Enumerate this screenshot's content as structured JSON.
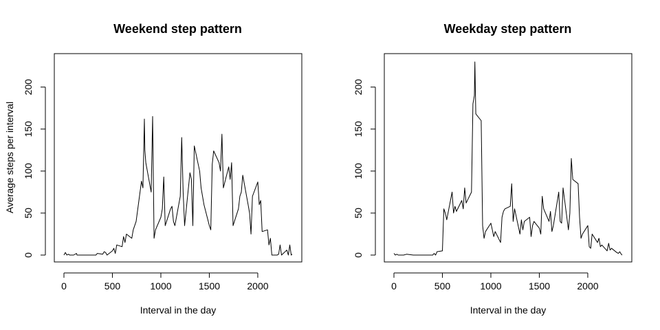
{
  "chart_data": [
    {
      "type": "line",
      "title": "Weekend step pattern",
      "xlabel": "Interval in the day",
      "ylabel": "Average steps per interval",
      "xlim": [
        0,
        2355
      ],
      "ylim": [
        0,
        230
      ],
      "xticks": [
        0,
        500,
        1000,
        1500,
        2000
      ],
      "yticks": [
        0,
        50,
        100,
        150,
        200
      ],
      "grid": false,
      "series": [
        {
          "x": [
            0,
            15,
            30,
            45,
            60,
            100,
            130,
            135,
            200,
            300,
            330,
            345,
            400,
            415,
            430,
            445,
            500,
            515,
            530,
            545,
            600,
            615,
            630,
            645,
            700,
            715,
            730,
            745,
            800,
            815,
            830,
            835,
            845,
            900,
            915,
            930,
            945,
            1000,
            1015,
            1030,
            1045,
            1100,
            1115,
            1130,
            1145,
            1200,
            1215,
            1230,
            1245,
            1300,
            1315,
            1330,
            1345,
            1400,
            1415,
            1430,
            1445,
            1500,
            1515,
            1530,
            1545,
            1600,
            1615,
            1630,
            1645,
            1700,
            1715,
            1730,
            1745,
            1800,
            1815,
            1830,
            1845,
            1900,
            1915,
            1930,
            1945,
            2000,
            2015,
            2030,
            2045,
            2100,
            2115,
            2130,
            2145,
            2200,
            2215,
            2230,
            2245,
            2300,
            2315,
            2330,
            2345,
            2355
          ],
          "y": [
            0,
            3,
            0,
            1,
            0,
            0,
            2,
            0,
            0,
            0,
            0,
            2,
            1,
            4,
            3,
            0,
            5,
            8,
            2,
            12,
            10,
            22,
            15,
            25,
            20,
            30,
            35,
            40,
            88,
            80,
            162,
            125,
            110,
            75,
            165,
            20,
            30,
            45,
            55,
            93,
            35,
            55,
            58,
            40,
            35,
            70,
            140,
            75,
            35,
            98,
            90,
            35,
            130,
            100,
            80,
            70,
            60,
            35,
            30,
            108,
            124,
            110,
            100,
            144,
            80,
            105,
            90,
            110,
            35,
            55,
            70,
            75,
            95,
            60,
            50,
            25,
            70,
            87,
            60,
            65,
            28,
            30,
            12,
            20,
            0,
            0,
            1,
            12,
            0,
            6,
            0,
            12,
            0,
            1
          ]
        }
      ]
    },
    {
      "type": "line",
      "title": "Weekday step pattern",
      "xlabel": "Interval in the day",
      "ylabel": "",
      "xlim": [
        0,
        2355
      ],
      "ylim": [
        0,
        230
      ],
      "xticks": [
        0,
        500,
        1000,
        1500,
        2000
      ],
      "yticks": [
        0,
        50,
        100,
        150,
        200
      ],
      "grid": false,
      "series": [
        {
          "x": [
            0,
            15,
            30,
            45,
            100,
            130,
            200,
            300,
            400,
            415,
            430,
            445,
            500,
            515,
            530,
            545,
            600,
            615,
            630,
            645,
            700,
            715,
            730,
            745,
            800,
            815,
            830,
            835,
            845,
            900,
            915,
            930,
            945,
            1000,
            1015,
            1030,
            1045,
            1100,
            1115,
            1130,
            1145,
            1200,
            1215,
            1230,
            1245,
            1300,
            1315,
            1330,
            1345,
            1400,
            1415,
            1430,
            1445,
            1500,
            1515,
            1530,
            1545,
            1600,
            1615,
            1630,
            1645,
            1700,
            1715,
            1730,
            1745,
            1800,
            1815,
            1830,
            1845,
            1900,
            1915,
            1930,
            1945,
            2000,
            2015,
            2030,
            2045,
            2100,
            2115,
            2130,
            2145,
            2200,
            2215,
            2230,
            2245,
            2300,
            2315,
            2330,
            2345,
            2355
          ],
          "y": [
            2,
            0,
            1,
            0,
            0,
            1,
            0,
            0,
            0,
            2,
            0,
            4,
            5,
            55,
            50,
            42,
            75,
            50,
            58,
            52,
            65,
            55,
            80,
            62,
            75,
            180,
            190,
            230,
            168,
            160,
            35,
            20,
            28,
            38,
            30,
            22,
            28,
            15,
            45,
            52,
            55,
            58,
            85,
            40,
            55,
            25,
            42,
            30,
            40,
            45,
            22,
            35,
            40,
            32,
            25,
            70,
            55,
            40,
            52,
            28,
            35,
            75,
            40,
            38,
            80,
            30,
            50,
            115,
            90,
            85,
            45,
            20,
            25,
            35,
            10,
            8,
            25,
            15,
            20,
            10,
            12,
            5,
            14,
            6,
            8,
            3,
            2,
            4,
            1,
            0
          ]
        }
      ]
    }
  ]
}
